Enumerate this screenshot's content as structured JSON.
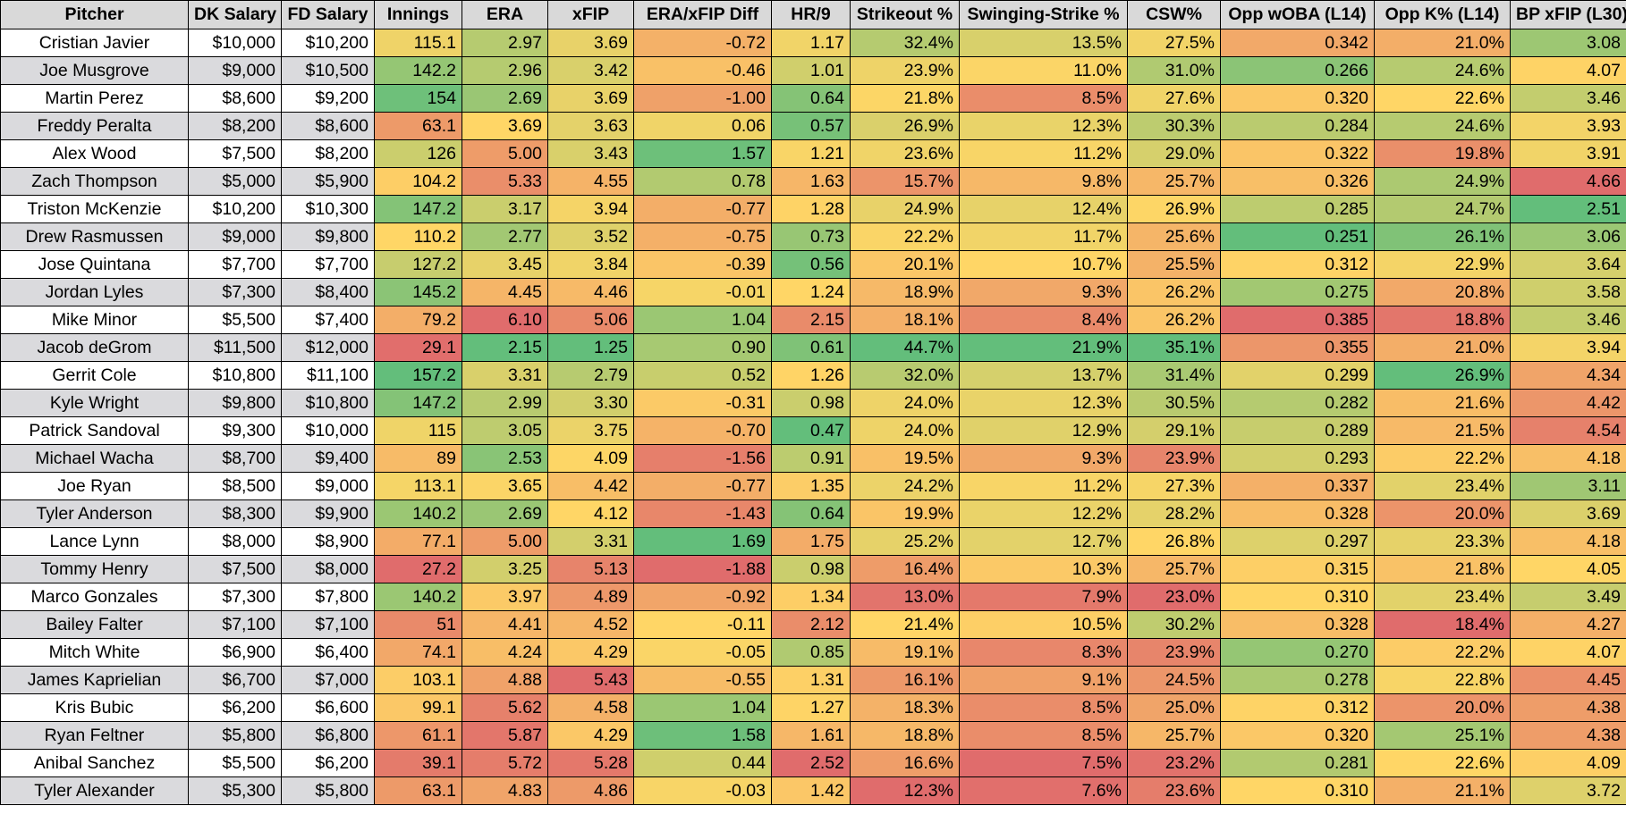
{
  "table": {
    "columns": [
      "Pitcher",
      "DK Salary",
      "FD Salary",
      "Innings",
      "ERA",
      "xFIP",
      "ERA/xFIP Diff",
      "HR/9",
      "Strikeout %",
      "Swinging-Strike %",
      "CSW%",
      "Opp wOBA (L14)",
      "Opp K% (L14)",
      "BP xFIP (L30)"
    ],
    "rows": [
      [
        "Cristian Javier",
        "$10,000",
        "$10,200",
        "115.1",
        "2.97",
        "3.69",
        "-0.72",
        "1.17",
        "32.4%",
        "13.5%",
        "27.5%",
        "0.342",
        "21.0%",
        "3.08"
      ],
      [
        "Joe Musgrove",
        "$9,000",
        "$10,500",
        "142.2",
        "2.96",
        "3.42",
        "-0.46",
        "1.01",
        "23.9%",
        "11.0%",
        "31.0%",
        "0.266",
        "24.6%",
        "4.07"
      ],
      [
        "Martin Perez",
        "$8,600",
        "$9,200",
        "154",
        "2.69",
        "3.69",
        "-1.00",
        "0.64",
        "21.8%",
        "8.5%",
        "27.6%",
        "0.320",
        "22.6%",
        "3.46"
      ],
      [
        "Freddy Peralta",
        "$8,200",
        "$8,600",
        "63.1",
        "3.69",
        "3.63",
        "0.06",
        "0.57",
        "26.9%",
        "12.3%",
        "30.3%",
        "0.284",
        "24.6%",
        "3.93"
      ],
      [
        "Alex Wood",
        "$7,500",
        "$8,200",
        "126",
        "5.00",
        "3.43",
        "1.57",
        "1.21",
        "23.6%",
        "11.2%",
        "29.0%",
        "0.322",
        "19.8%",
        "3.91"
      ],
      [
        "Zach Thompson",
        "$5,000",
        "$5,900",
        "104.2",
        "5.33",
        "4.55",
        "0.78",
        "1.63",
        "15.7%",
        "9.8%",
        "25.7%",
        "0.326",
        "24.9%",
        "4.66"
      ],
      [
        "Triston McKenzie",
        "$10,200",
        "$10,300",
        "147.2",
        "3.17",
        "3.94",
        "-0.77",
        "1.28",
        "24.9%",
        "12.4%",
        "26.9%",
        "0.285",
        "24.7%",
        "2.51"
      ],
      [
        "Drew Rasmussen",
        "$9,000",
        "$9,800",
        "110.2",
        "2.77",
        "3.52",
        "-0.75",
        "0.73",
        "22.2%",
        "11.7%",
        "25.6%",
        "0.251",
        "26.1%",
        "3.06"
      ],
      [
        "Jose Quintana",
        "$7,700",
        "$7,700",
        "127.2",
        "3.45",
        "3.84",
        "-0.39",
        "0.56",
        "20.1%",
        "10.7%",
        "25.5%",
        "0.312",
        "22.9%",
        "3.64"
      ],
      [
        "Jordan Lyles",
        "$7,300",
        "$8,400",
        "145.2",
        "4.45",
        "4.46",
        "-0.01",
        "1.24",
        "18.9%",
        "9.3%",
        "26.2%",
        "0.275",
        "20.8%",
        "3.58"
      ],
      [
        "Mike Minor",
        "$5,500",
        "$7,400",
        "79.2",
        "6.10",
        "5.06",
        "1.04",
        "2.15",
        "18.1%",
        "8.4%",
        "26.2%",
        "0.385",
        "18.8%",
        "3.46"
      ],
      [
        "Jacob deGrom",
        "$11,500",
        "$12,000",
        "29.1",
        "2.15",
        "1.25",
        "0.90",
        "0.61",
        "44.7%",
        "21.9%",
        "35.1%",
        "0.355",
        "21.0%",
        "3.94"
      ],
      [
        "Gerrit Cole",
        "$10,800",
        "$11,100",
        "157.2",
        "3.31",
        "2.79",
        "0.52",
        "1.26",
        "32.0%",
        "13.7%",
        "31.4%",
        "0.299",
        "26.9%",
        "4.34"
      ],
      [
        "Kyle Wright",
        "$9,800",
        "$10,800",
        "147.2",
        "2.99",
        "3.30",
        "-0.31",
        "0.98",
        "24.0%",
        "12.3%",
        "30.5%",
        "0.282",
        "21.6%",
        "4.42"
      ],
      [
        "Patrick Sandoval",
        "$9,300",
        "$10,000",
        "115",
        "3.05",
        "3.75",
        "-0.70",
        "0.47",
        "24.0%",
        "12.9%",
        "29.1%",
        "0.289",
        "21.5%",
        "4.54"
      ],
      [
        "Michael Wacha",
        "$8,700",
        "$9,400",
        "89",
        "2.53",
        "4.09",
        "-1.56",
        "0.91",
        "19.5%",
        "9.3%",
        "23.9%",
        "0.293",
        "22.2%",
        "4.18"
      ],
      [
        "Joe Ryan",
        "$8,500",
        "$9,000",
        "113.1",
        "3.65",
        "4.42",
        "-0.77",
        "1.35",
        "24.2%",
        "11.2%",
        "27.3%",
        "0.337",
        "23.4%",
        "3.11"
      ],
      [
        "Tyler Anderson",
        "$8,300",
        "$9,900",
        "140.2",
        "2.69",
        "4.12",
        "-1.43",
        "0.64",
        "19.9%",
        "12.2%",
        "28.2%",
        "0.328",
        "20.0%",
        "3.69"
      ],
      [
        "Lance Lynn",
        "$8,000",
        "$8,900",
        "77.1",
        "5.00",
        "3.31",
        "1.69",
        "1.75",
        "25.2%",
        "12.7%",
        "26.8%",
        "0.297",
        "23.3%",
        "4.18"
      ],
      [
        "Tommy Henry",
        "$7,500",
        "$8,000",
        "27.2",
        "3.25",
        "5.13",
        "-1.88",
        "0.98",
        "16.4%",
        "10.3%",
        "25.7%",
        "0.315",
        "21.8%",
        "4.05"
      ],
      [
        "Marco Gonzales",
        "$7,300",
        "$7,800",
        "140.2",
        "3.97",
        "4.89",
        "-0.92",
        "1.34",
        "13.0%",
        "7.9%",
        "23.0%",
        "0.310",
        "23.4%",
        "3.49"
      ],
      [
        "Bailey Falter",
        "$7,100",
        "$7,100",
        "51",
        "4.41",
        "4.52",
        "-0.11",
        "2.12",
        "21.4%",
        "10.5%",
        "30.2%",
        "0.328",
        "18.4%",
        "4.27"
      ],
      [
        "Mitch White",
        "$6,900",
        "$6,400",
        "74.1",
        "4.24",
        "4.29",
        "-0.05",
        "0.85",
        "19.1%",
        "8.3%",
        "23.9%",
        "0.270",
        "22.2%",
        "4.07"
      ],
      [
        "James Kaprielian",
        "$6,700",
        "$7,000",
        "103.1",
        "4.88",
        "5.43",
        "-0.55",
        "1.31",
        "16.1%",
        "9.1%",
        "24.5%",
        "0.278",
        "22.8%",
        "4.45"
      ],
      [
        "Kris Bubic",
        "$6,200",
        "$6,600",
        "99.1",
        "5.62",
        "4.58",
        "1.04",
        "1.27",
        "18.3%",
        "8.5%",
        "25.0%",
        "0.312",
        "20.0%",
        "4.38"
      ],
      [
        "Ryan Feltner",
        "$5,800",
        "$6,800",
        "61.1",
        "5.87",
        "4.29",
        "1.58",
        "1.61",
        "18.8%",
        "8.5%",
        "25.7%",
        "0.320",
        "25.1%",
        "4.38"
      ],
      [
        "Anibal Sanchez",
        "$5,500",
        "$6,200",
        "39.1",
        "5.72",
        "5.28",
        "0.44",
        "2.52",
        "16.6%",
        "7.5%",
        "23.2%",
        "0.281",
        "22.6%",
        "4.09"
      ],
      [
        "Tyler Alexander",
        "$5,300",
        "$5,800",
        "63.1",
        "4.83",
        "4.86",
        "-0.03",
        "1.42",
        "12.3%",
        "7.6%",
        "23.6%",
        "0.310",
        "21.1%",
        "3.72"
      ]
    ],
    "colors": {
      "header_bg": "#d9d9d9",
      "row_alt_bg": "#dadadd",
      "scale_good": "#63be7b",
      "scale_mid": "#ffd666",
      "scale_bad": "#e06c6c"
    }
  }
}
